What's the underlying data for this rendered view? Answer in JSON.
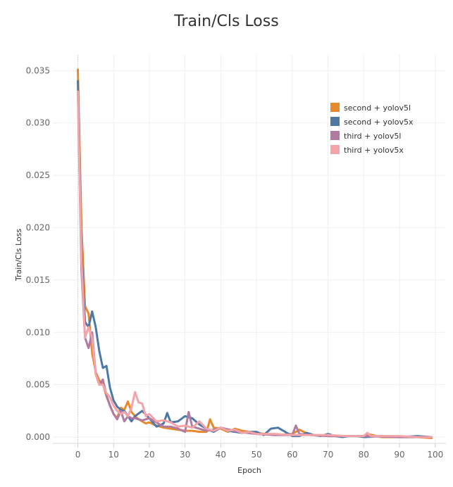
{
  "chart_data": {
    "type": "line",
    "title": "Train/Cls Loss",
    "xlabel": "Epoch",
    "ylabel": "Train/Cls Loss",
    "xlim": [
      -7,
      103
    ],
    "ylim": [
      -0.0006,
      0.0365
    ],
    "xticks": [
      0,
      10,
      20,
      30,
      40,
      50,
      60,
      70,
      80,
      90,
      100
    ],
    "yticks": [
      0.0,
      0.005,
      0.01,
      0.015,
      0.02,
      0.025,
      0.03,
      0.035
    ],
    "ytick_labels": [
      "0.000",
      "0.005",
      "0.010",
      "0.015",
      "0.020",
      "0.025",
      "0.030",
      "0.035"
    ],
    "grid": true,
    "legend_position": "top-right",
    "series": [
      {
        "name": "second + yolov5l",
        "color": "#E8892B",
        "x": [
          0,
          1,
          2,
          3,
          4,
          5,
          6,
          7,
          8,
          9,
          10,
          11,
          12,
          13,
          14,
          15,
          16,
          17,
          18,
          19,
          20,
          22,
          24,
          26,
          28,
          30,
          32,
          34,
          36,
          37,
          38,
          40,
          42,
          44,
          46,
          48,
          50,
          55,
          60,
          62,
          65,
          70,
          75,
          80,
          81,
          85,
          90,
          95,
          99
        ],
        "y": [
          0.0351,
          0.0202,
          0.0125,
          0.0118,
          0.008,
          0.0062,
          0.0054,
          0.0051,
          0.0039,
          0.003,
          0.0022,
          0.0018,
          0.0028,
          0.0026,
          0.0034,
          0.0024,
          0.002,
          0.0017,
          0.0015,
          0.0013,
          0.0014,
          0.0011,
          0.0009,
          0.0008,
          0.0007,
          0.0006,
          0.0006,
          0.0005,
          0.0005,
          0.0017,
          0.0009,
          0.0008,
          0.0005,
          0.0008,
          0.0006,
          0.0005,
          0.0004,
          0.0002,
          0.0003,
          0.0007,
          0.0002,
          0.0001,
          0.0001,
          0.0001,
          0.0003,
          0.0,
          0.0,
          0.0,
          -0.0001
        ]
      },
      {
        "name": "second + yolov5x",
        "color": "#4E79A7",
        "x": [
          0,
          1,
          2,
          3,
          4,
          5,
          6,
          7,
          8,
          9,
          10,
          11,
          12,
          13,
          14,
          15,
          16,
          18,
          20,
          22,
          24,
          25,
          26,
          28,
          30,
          32,
          34,
          36,
          38,
          40,
          42,
          44,
          46,
          48,
          50,
          52,
          54,
          56,
          58,
          60,
          62,
          64,
          66,
          68,
          70,
          72,
          74,
          76,
          78,
          80,
          85,
          90,
          95,
          99
        ],
        "y": [
          0.034,
          0.018,
          0.011,
          0.0105,
          0.012,
          0.0105,
          0.0082,
          0.0066,
          0.0068,
          0.0047,
          0.0035,
          0.0029,
          0.0026,
          0.0025,
          0.002,
          0.0015,
          0.002,
          0.0025,
          0.0018,
          0.001,
          0.0013,
          0.0023,
          0.0014,
          0.0015,
          0.002,
          0.0018,
          0.0012,
          0.0008,
          0.0005,
          0.0009,
          0.0006,
          0.0005,
          0.0004,
          0.0005,
          0.0005,
          0.0002,
          0.0008,
          0.0009,
          0.0005,
          0.0001,
          0.0001,
          0.0004,
          0.0002,
          0.0001,
          0.0003,
          0.0001,
          0.0,
          0.0001,
          0.0001,
          0.0,
          0.0001,
          0.0,
          0.0001,
          0.0
        ]
      },
      {
        "name": "third + yolov5l",
        "color": "#B07AA1",
        "x": [
          0,
          1,
          2,
          3,
          4,
          5,
          6,
          7,
          8,
          9,
          10,
          11,
          12,
          13,
          14,
          15,
          16,
          17,
          18,
          20,
          22,
          24,
          26,
          28,
          30,
          31,
          32,
          34,
          36,
          38,
          40,
          45,
          50,
          55,
          60,
          61,
          62,
          65,
          70,
          80,
          90,
          99
        ],
        "y": [
          0.033,
          0.016,
          0.0095,
          0.0085,
          0.01,
          0.006,
          0.005,
          0.0055,
          0.004,
          0.003,
          0.0022,
          0.0017,
          0.0025,
          0.0015,
          0.002,
          0.0018,
          0.0018,
          0.0017,
          0.0016,
          0.0018,
          0.0014,
          0.001,
          0.001,
          0.0008,
          0.0005,
          0.0024,
          0.001,
          0.0008,
          0.0006,
          0.0007,
          0.0009,
          0.0005,
          0.0003,
          0.0002,
          0.0002,
          0.0011,
          0.0003,
          0.0002,
          0.0001,
          0.0001,
          0.0,
          0.0
        ]
      },
      {
        "name": "third + yolov5x",
        "color": "#F4A3A8",
        "x": [
          0,
          1,
          2,
          3,
          4,
          5,
          6,
          7,
          8,
          9,
          10,
          11,
          12,
          13,
          14,
          15,
          16,
          17,
          18,
          19,
          20,
          22,
          24,
          26,
          28,
          30,
          32,
          34,
          36,
          38,
          40,
          42,
          44,
          46,
          48,
          50,
          55,
          60,
          65,
          70,
          75,
          80,
          81,
          82,
          85,
          90,
          95,
          99
        ],
        "y": [
          0.033,
          0.017,
          0.0095,
          0.0105,
          0.0095,
          0.006,
          0.005,
          0.005,
          0.0042,
          0.0038,
          0.003,
          0.0025,
          0.0022,
          0.0024,
          0.002,
          0.0028,
          0.0043,
          0.0033,
          0.0032,
          0.002,
          0.0022,
          0.0015,
          0.0016,
          0.0014,
          0.001,
          0.0011,
          0.0009,
          0.0015,
          0.0008,
          0.0006,
          0.0009,
          0.0006,
          0.0007,
          0.0004,
          0.0005,
          0.0003,
          0.0003,
          0.0002,
          0.0002,
          0.0002,
          0.0001,
          0.0001,
          0.0004,
          0.0001,
          0.0001,
          0.0001,
          0.0,
          0.0
        ]
      }
    ]
  }
}
